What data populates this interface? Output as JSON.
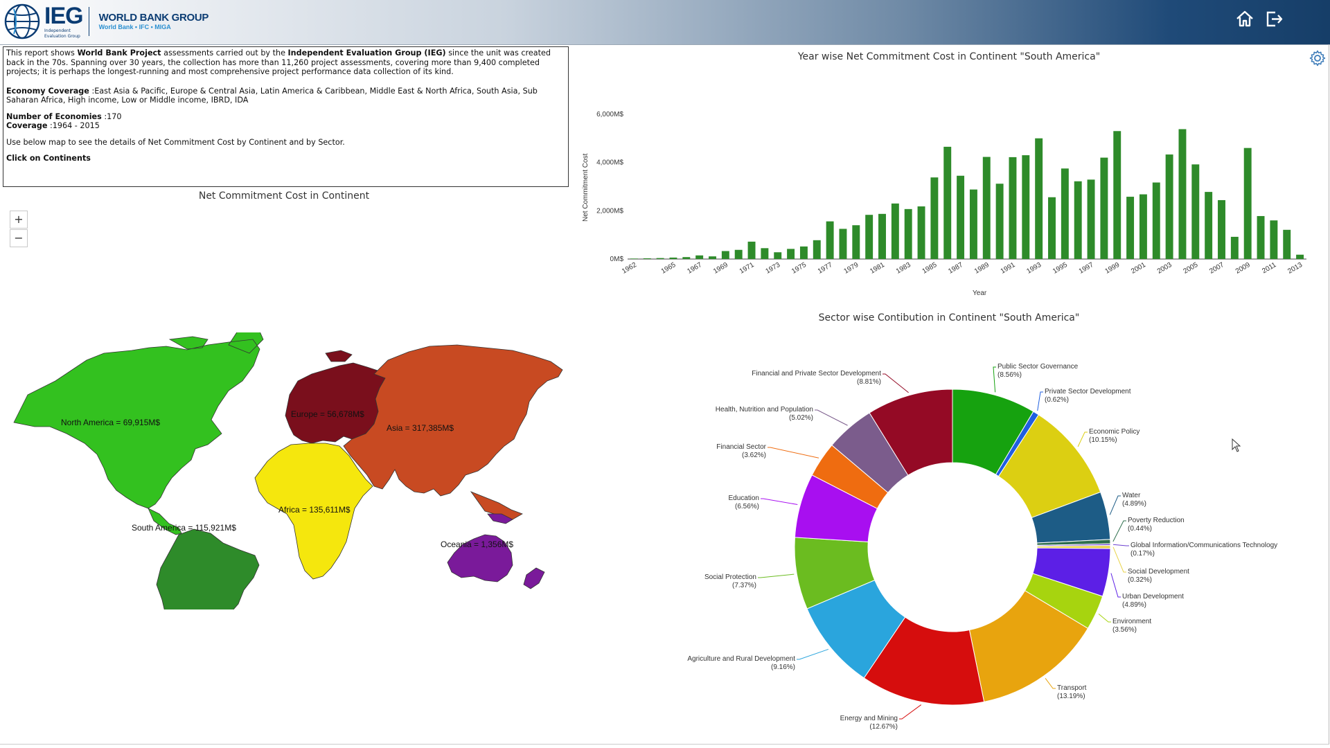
{
  "header": {
    "logo_ieg": "IEG",
    "logo_ieg_sub": [
      "Independent",
      "Evaluation Group"
    ],
    "logo_wbg": "WORLD BANK GROUP",
    "logo_wbg_sub": "World Bank • IFC • MIGA",
    "icons": [
      "home-icon",
      "logout-icon"
    ]
  },
  "intro": {
    "p1_a": "This report shows ",
    "p1_b": "World Bank Project",
    "p1_c": " assessments carried out by the ",
    "p1_d": "Independent Evaluation Group (IEG)",
    "p1_e": " since the unit was created back in the 70s. Spanning over 30 years, the collection has more than 11,260 project assessments, covering more than 9,400 completed projects; it is perhaps the longest-running and most comprehensive project performance data collection of its kind.",
    "economy_label": "Economy Coverage",
    "economy_value": " :East Asia & Pacific, Europe & Central Asia, Latin America & Caribbean, Middle East & North Africa, South Asia, Sub Saharan Africa, High income, Low or Middle income, IBRD, IDA",
    "economies_label": "Number of Economies",
    "economies_value": " :170",
    "coverage_label": "Coverage",
    "coverage_value": " :1964 - 2015",
    "use_text": "Use below map to see the details of Net Commitment Cost by Continent and by Sector.",
    "click_text": "Click on Continents"
  },
  "map": {
    "title": "Net Commitment Cost in Continent",
    "zoom_in": "+",
    "zoom_out": "−",
    "labels": {
      "north_america": "North America = 69,915M$",
      "europe": "Europe = 56,678M$",
      "asia": "Asia = 317,385M$",
      "africa": "Africa = 135,611M$",
      "south_america": "South America = 115,921M$",
      "oceania": "Oceania = 1,356M$"
    },
    "colors": {
      "north_america": "#33c11f",
      "europe": "#7a0f1c",
      "asia": "#c84a22",
      "africa": "#f5e70d",
      "south_america": "#2e8b2a",
      "oceania": "#7a1a9a"
    }
  },
  "chart_data": [
    {
      "type": "bar",
      "title": "Year wise Net Commitment Cost in Continent  \"South America\"",
      "xlabel": "Year",
      "ylabel": "Net Commitment Cost",
      "ylim": [
        0,
        7000
      ],
      "yticks": [
        "0M$",
        "2,000M$",
        "4,000M$",
        "6,000M$"
      ],
      "ytick_values": [
        0,
        2000,
        4000,
        6000
      ],
      "color": "#2e8b2a",
      "x": [
        1962,
        1963,
        1964,
        1965,
        1966,
        1967,
        1968,
        1969,
        1970,
        1971,
        1972,
        1973,
        1974,
        1975,
        1976,
        1977,
        1978,
        1979,
        1980,
        1981,
        1982,
        1983,
        1984,
        1985,
        1986,
        1987,
        1988,
        1989,
        1990,
        1991,
        1992,
        1993,
        1994,
        1995,
        1996,
        1997,
        1998,
        1999,
        2000,
        2001,
        2002,
        2003,
        2004,
        2005,
        2006,
        2007,
        2008,
        2009,
        2010,
        2011,
        2012,
        2013
      ],
      "xtick_labels": [
        "1962",
        "1965",
        "1967",
        "1969",
        "1971",
        "1973",
        "1975",
        "1977",
        "1979",
        "1981",
        "1983",
        "1985",
        "1987",
        "1989",
        "1991",
        "1993",
        "1995",
        "1997",
        "1999",
        "2001",
        "2003",
        "2005",
        "2007",
        "2009",
        "2011",
        "2013"
      ],
      "values": [
        20,
        30,
        40,
        60,
        80,
        150,
        110,
        330,
        380,
        720,
        450,
        280,
        420,
        520,
        780,
        1560,
        1250,
        1400,
        1830,
        1870,
        2300,
        2070,
        2180,
        3380,
        4650,
        3450,
        2880,
        4230,
        3120,
        4220,
        4300,
        5000,
        2560,
        3750,
        3220,
        3290,
        4200,
        5300,
        2580,
        2680,
        3170,
        4330,
        5380,
        3920,
        2780,
        2440,
        920,
        4600,
        1780,
        1600,
        1210,
        180
      ]
    },
    {
      "type": "pie",
      "title": "Sector wise Contibution in Continent  \"South America\"",
      "slices": [
        {
          "name": "Public Sector Governance",
          "pct_label": "(8.56%)",
          "value": 8.56,
          "color": "#16a20f"
        },
        {
          "name": "Private Sector Development",
          "pct_label": "(0.62%)",
          "value": 0.62,
          "color": "#1f5fe0"
        },
        {
          "name": "Economic Policy",
          "pct_label": "(10.15%)",
          "value": 10.15,
          "color": "#dccf12"
        },
        {
          "name": "Water",
          "pct_label": "(4.89%)",
          "value": 4.89,
          "color": "#1d5c86"
        },
        {
          "name": "Poverty Reduction",
          "pct_label": "(0.44%)",
          "value": 0.44,
          "color": "#2e6f4d"
        },
        {
          "name": "Global Information/Communications Technology",
          "pct_label": "(0.17%)",
          "value": 0.17,
          "color": "#6a3fd0"
        },
        {
          "name": "Social Development",
          "pct_label": "(0.32%)",
          "value": 0.32,
          "color": "#e9d34a"
        },
        {
          "name": "Urban Development",
          "pct_label": "(4.89%)",
          "value": 4.89,
          "color": "#5c1fe6"
        },
        {
          "name": "Environment",
          "pct_label": "(3.56%)",
          "value": 3.56,
          "color": "#a7d40f"
        },
        {
          "name": "Transport",
          "pct_label": "(13.19%)",
          "value": 13.19,
          "color": "#e8a40e"
        },
        {
          "name": "Energy and Mining",
          "pct_label": "(12.67%)",
          "value": 12.67,
          "color": "#d60d0d"
        },
        {
          "name": "Agriculture and Rural Development",
          "pct_label": "(9.16%)",
          "value": 9.16,
          "color": "#2aa5dd"
        },
        {
          "name": "Social Protection",
          "pct_label": "(7.37%)",
          "value": 7.37,
          "color": "#6bbc20"
        },
        {
          "name": "Education",
          "pct_label": "(6.56%)",
          "value": 6.56,
          "color": "#a80ff0"
        },
        {
          "name": "Financial Sector",
          "pct_label": "(3.62%)",
          "value": 3.62,
          "color": "#ef6c10"
        },
        {
          "name": "Health, Nutrition and Population",
          "pct_label": "(5.02%)",
          "value": 5.02,
          "color": "#7b5c8c"
        },
        {
          "name": "Financial and Private Sector Development",
          "pct_label": "(8.81%)",
          "value": 8.81,
          "color": "#940a25"
        }
      ]
    }
  ]
}
